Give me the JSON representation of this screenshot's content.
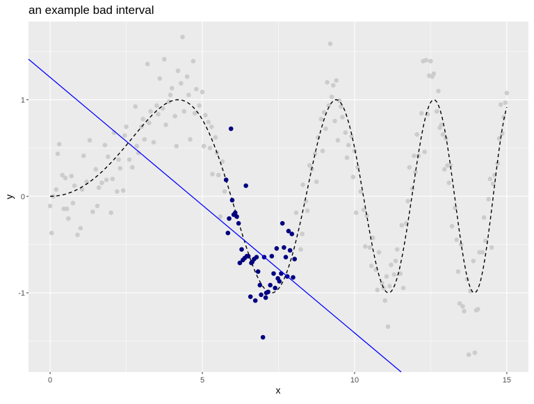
{
  "chart_data": {
    "type": "scatter",
    "title": "an example bad interval",
    "xlabel": "x",
    "ylabel": "y",
    "xlim": [
      -0.71,
      15.71
    ],
    "ylim": [
      -1.82,
      1.81
    ],
    "x_ticks": [
      0,
      5,
      10,
      15
    ],
    "x_tick_labels": [
      "0",
      "5",
      "10",
      "15"
    ],
    "y_ticks": [
      -1,
      0,
      1
    ],
    "y_tick_labels": [
      "-1",
      "0",
      "1"
    ],
    "grid": true,
    "legend": "none",
    "colors": {
      "panel": "#ebebeb",
      "grid": "#ffffff",
      "gray_points": "#cccccc",
      "highlight_points": "#000080",
      "fit_line": "#0000ff",
      "curve": "#000000"
    },
    "fit_line": {
      "intercept": 1.232,
      "slope": -0.2647
    },
    "gray_points": [
      [
        0.0,
        -0.1
      ],
      [
        0.05,
        -0.38
      ],
      [
        0.1,
        0.0
      ],
      [
        0.2,
        0.07
      ],
      [
        0.25,
        0.44
      ],
      [
        0.3,
        0.54
      ],
      [
        0.4,
        0.22
      ],
      [
        0.45,
        -0.13
      ],
      [
        0.5,
        0.19
      ],
      [
        0.55,
        -0.13
      ],
      [
        0.6,
        -0.23
      ],
      [
        0.7,
        0.21
      ],
      [
        0.75,
        -0.07
      ],
      [
        0.8,
        0.11
      ],
      [
        0.9,
        -0.4
      ],
      [
        1.0,
        -0.33
      ],
      [
        1.05,
        0.07
      ],
      [
        1.1,
        0.42
      ],
      [
        1.2,
        0.15
      ],
      [
        1.3,
        0.58
      ],
      [
        1.4,
        -0.16
      ],
      [
        1.5,
        0.28
      ],
      [
        1.55,
        -0.1
      ],
      [
        1.6,
        0.09
      ],
      [
        1.7,
        0.14
      ],
      [
        1.8,
        0.53
      ],
      [
        1.85,
        0.17
      ],
      [
        1.9,
        0.41
      ],
      [
        2.0,
        -0.17
      ],
      [
        2.05,
        0.18
      ],
      [
        2.1,
        0.66
      ],
      [
        2.2,
        0.05
      ],
      [
        2.25,
        0.38
      ],
      [
        2.3,
        0.29
      ],
      [
        2.4,
        0.06
      ],
      [
        2.45,
        0.63
      ],
      [
        2.5,
        0.72
      ],
      [
        2.6,
        0.38
      ],
      [
        2.7,
        0.3
      ],
      [
        2.8,
        0.93
      ],
      [
        2.85,
        0.52
      ],
      [
        2.9,
        0.45
      ],
      [
        3.0,
        0.72
      ],
      [
        3.05,
        0.8
      ],
      [
        3.1,
        0.59
      ],
      [
        3.2,
        1.37
      ],
      [
        3.25,
        0.76
      ],
      [
        3.3,
        0.88
      ],
      [
        3.4,
        0.56
      ],
      [
        3.5,
        0.94
      ],
      [
        3.55,
        0.85
      ],
      [
        3.6,
        1.22
      ],
      [
        3.7,
        0.91
      ],
      [
        3.75,
        1.42
      ],
      [
        3.8,
        0.74
      ],
      [
        3.9,
        0.98
      ],
      [
        3.95,
        1.05
      ],
      [
        4.0,
        1.12
      ],
      [
        4.1,
        0.83
      ],
      [
        4.15,
        0.52
      ],
      [
        4.2,
        1.3
      ],
      [
        4.3,
        1.17
      ],
      [
        4.35,
        1.65
      ],
      [
        4.4,
        0.88
      ],
      [
        4.5,
        1.24
      ],
      [
        4.55,
        1.05
      ],
      [
        4.6,
        0.59
      ],
      [
        4.7,
        1.4
      ],
      [
        4.75,
        0.86
      ],
      [
        4.8,
        1.11
      ],
      [
        4.9,
        0.94
      ],
      [
        5.0,
        1.08
      ],
      [
        5.05,
        0.52
      ],
      [
        5.1,
        0.84
      ],
      [
        5.2,
        0.77
      ],
      [
        5.25,
        0.5
      ],
      [
        5.3,
        0.72
      ],
      [
        5.33,
        0.23
      ],
      [
        5.43,
        0.61
      ],
      [
        5.48,
        0.45
      ],
      [
        5.53,
        0.22
      ],
      [
        5.59,
        -0.21
      ],
      [
        5.66,
        0.36
      ],
      [
        5.73,
        0.05
      ],
      [
        8.08,
        -0.17
      ],
      [
        8.23,
        -0.55
      ],
      [
        8.28,
        -0.39
      ],
      [
        8.45,
        -0.15
      ],
      [
        8.52,
        0.32
      ],
      [
        8.3,
        0.12
      ],
      [
        8.4,
        -0.05
      ],
      [
        8.6,
        0.28
      ],
      [
        8.7,
        0.44
      ],
      [
        8.75,
        0.15
      ],
      [
        8.8,
        0.61
      ],
      [
        8.9,
        0.8
      ],
      [
        8.95,
        0.47
      ],
      [
        9.0,
        0.87
      ],
      [
        9.05,
        0.7
      ],
      [
        9.1,
        1.18
      ],
      [
        9.15,
        0.94
      ],
      [
        9.2,
        1.58
      ],
      [
        9.25,
        1.03
      ],
      [
        9.3,
        1.15
      ],
      [
        9.35,
        0.78
      ],
      [
        9.4,
        1.2
      ],
      [
        9.45,
        0.58
      ],
      [
        9.5,
        0.99
      ],
      [
        9.55,
        0.93
      ],
      [
        9.6,
        0.82
      ],
      [
        9.7,
        0.66
      ],
      [
        9.75,
        0.4
      ],
      [
        9.8,
        0.53
      ],
      [
        9.9,
        0.62
      ],
      [
        9.95,
        0.2
      ],
      [
        10.0,
        0.47
      ],
      [
        10.05,
        -0.17
      ],
      [
        10.1,
        0.3
      ],
      [
        10.2,
        0.05
      ],
      [
        10.3,
        -0.14
      ],
      [
        10.35,
        -0.52
      ],
      [
        10.4,
        -0.2
      ],
      [
        10.5,
        -0.53
      ],
      [
        10.55,
        -0.72
      ],
      [
        10.6,
        -0.43
      ],
      [
        10.7,
        -0.76
      ],
      [
        10.75,
        -0.97
      ],
      [
        10.8,
        -0.58
      ],
      [
        10.9,
        -0.9
      ],
      [
        10.95,
        -0.95
      ],
      [
        11.0,
        -1.08
      ],
      [
        11.05,
        -0.83
      ],
      [
        11.1,
        -1.35
      ],
      [
        11.15,
        -0.93
      ],
      [
        11.2,
        -0.71
      ],
      [
        11.3,
        -0.81
      ],
      [
        11.35,
        -0.67
      ],
      [
        11.4,
        -0.55
      ],
      [
        11.5,
        -0.8
      ],
      [
        11.55,
        -0.3
      ],
      [
        11.6,
        -0.95
      ],
      [
        11.7,
        -0.28
      ],
      [
        11.75,
        -0.05
      ],
      [
        11.8,
        0.3
      ],
      [
        11.9,
        0.08
      ],
      [
        11.95,
        0.42
      ],
      [
        12.0,
        0.25
      ],
      [
        12.05,
        0.64
      ],
      [
        12.1,
        0.42
      ],
      [
        12.2,
        0.86
      ],
      [
        12.25,
        1.4
      ],
      [
        12.3,
        0.46
      ],
      [
        12.35,
        1.41
      ],
      [
        12.4,
        0.85
      ],
      [
        12.45,
        1.25
      ],
      [
        12.5,
        1.4
      ],
      [
        12.55,
        1.24
      ],
      [
        12.6,
        1.27
      ],
      [
        12.7,
        0.88
      ],
      [
        12.75,
        1.09
      ],
      [
        12.8,
        0.71
      ],
      [
        12.85,
        0.74
      ],
      [
        12.9,
        0.64
      ],
      [
        12.95,
        0.28
      ],
      [
        13.0,
        0.6
      ],
      [
        13.05,
        0.32
      ],
      [
        13.1,
        0.14
      ],
      [
        13.15,
        0.32
      ],
      [
        13.2,
        -0.31
      ],
      [
        13.3,
        -0.12
      ],
      [
        13.35,
        -0.45
      ],
      [
        13.4,
        -0.78
      ],
      [
        13.45,
        -1.11
      ],
      [
        13.5,
        -0.5
      ],
      [
        13.55,
        -1.14
      ],
      [
        13.6,
        -1.19
      ],
      [
        13.7,
        -0.86
      ],
      [
        13.75,
        -1.64
      ],
      [
        13.8,
        -0.98
      ],
      [
        13.9,
        -0.67
      ],
      [
        13.95,
        -1.62
      ],
      [
        14.0,
        -1.18
      ],
      [
        14.05,
        -1.17
      ],
      [
        14.1,
        -0.58
      ],
      [
        14.2,
        -0.58
      ],
      [
        14.25,
        -0.22
      ],
      [
        14.3,
        -0.46
      ],
      [
        14.4,
        -0.03
      ],
      [
        14.45,
        0.18
      ],
      [
        14.5,
        -0.53
      ],
      [
        14.55,
        0.13
      ],
      [
        14.6,
        0.22
      ],
      [
        14.7,
        0.34
      ],
      [
        14.75,
        0.6
      ],
      [
        14.8,
        0.95
      ],
      [
        14.85,
        0.65
      ],
      [
        14.9,
        0.82
      ],
      [
        14.95,
        0.97
      ],
      [
        15.0,
        1.07
      ]
    ],
    "highlight_points": [
      [
        5.94,
        0.7
      ],
      [
        5.78,
        0.17
      ],
      [
        6.43,
        0.11
      ],
      [
        5.98,
        -0.04
      ],
      [
        6.08,
        -0.17
      ],
      [
        6.03,
        -0.19
      ],
      [
        6.13,
        -0.21
      ],
      [
        5.88,
        -0.23
      ],
      [
        6.19,
        -0.28
      ],
      [
        5.84,
        -0.38
      ],
      [
        7.63,
        -0.28
      ],
      [
        7.83,
        -0.36
      ],
      [
        7.94,
        -0.39
      ],
      [
        6.29,
        -0.55
      ],
      [
        7.44,
        -0.54
      ],
      [
        7.68,
        -0.53
      ],
      [
        7.88,
        -0.56
      ],
      [
        7.74,
        -0.63
      ],
      [
        8.03,
        -0.65
      ],
      [
        7.28,
        -0.62
      ],
      [
        7.03,
        -0.63
      ],
      [
        6.78,
        -0.63
      ],
      [
        6.51,
        -0.62
      ],
      [
        6.46,
        -0.62
      ],
      [
        6.39,
        -0.64
      ],
      [
        6.33,
        -0.66
      ],
      [
        6.23,
        -0.69
      ],
      [
        6.7,
        -0.65
      ],
      [
        6.64,
        -0.68
      ],
      [
        6.61,
        -0.69
      ],
      [
        6.83,
        -0.78
      ],
      [
        7.34,
        -0.8
      ],
      [
        7.59,
        -0.8
      ],
      [
        7.48,
        -0.85
      ],
      [
        7.53,
        -0.88
      ],
      [
        7.79,
        -0.83
      ],
      [
        7.98,
        -0.84
      ],
      [
        6.89,
        -0.92
      ],
      [
        7.23,
        -0.92
      ],
      [
        7.39,
        -0.95
      ],
      [
        7.16,
        -0.99
      ],
      [
        7.1,
        -1.0
      ],
      [
        6.93,
        -1.02
      ],
      [
        6.58,
        -1.04
      ],
      [
        6.74,
        -1.08
      ],
      [
        7.08,
        -1.05
      ],
      [
        6.99,
        -1.46
      ]
    ]
  }
}
